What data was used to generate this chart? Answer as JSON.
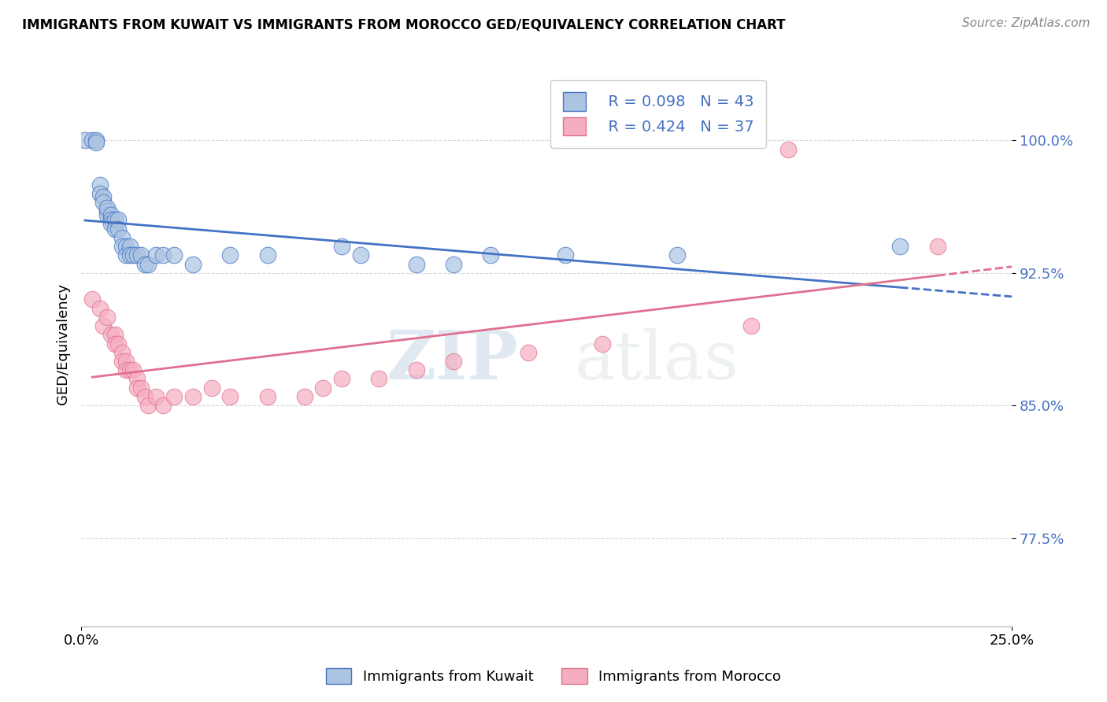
{
  "title": "IMMIGRANTS FROM KUWAIT VS IMMIGRANTS FROM MOROCCO GED/EQUIVALENCY CORRELATION CHART",
  "source": "Source: ZipAtlas.com",
  "ylabel": "GED/Equivalency",
  "ytick_labels": [
    "77.5%",
    "85.0%",
    "92.5%",
    "100.0%"
  ],
  "ytick_values": [
    0.775,
    0.85,
    0.925,
    1.0
  ],
  "xlim": [
    0.0,
    0.25
  ],
  "ylim": [
    0.725,
    1.045
  ],
  "legend_kuwait_r": "R = 0.098",
  "legend_kuwait_n": "N = 43",
  "legend_morocco_r": "R = 0.424",
  "legend_morocco_n": "N = 37",
  "color_kuwait": "#aac4e2",
  "color_morocco": "#f5aec0",
  "line_color_kuwait": "#4472c4",
  "line_color_morocco": "#e07090",
  "legend_label_kuwait": "Immigrants from Kuwait",
  "legend_label_morocco": "Immigrants from Morocco",
  "kuwait_x": [
    0.001,
    0.003,
    0.004,
    0.004,
    0.005,
    0.005,
    0.006,
    0.006,
    0.007,
    0.007,
    0.007,
    0.008,
    0.008,
    0.008,
    0.009,
    0.009,
    0.01,
    0.01,
    0.011,
    0.011,
    0.012,
    0.012,
    0.013,
    0.013,
    0.014,
    0.015,
    0.016,
    0.017,
    0.018,
    0.02,
    0.022,
    0.025,
    0.03,
    0.04,
    0.05,
    0.07,
    0.075,
    0.09,
    0.1,
    0.11,
    0.13,
    0.16,
    0.22
  ],
  "kuwait_y": [
    1.0,
    1.0,
    1.0,
    0.999,
    0.975,
    0.97,
    0.968,
    0.965,
    0.96,
    0.958,
    0.962,
    0.958,
    0.955,
    0.953,
    0.955,
    0.95,
    0.955,
    0.95,
    0.945,
    0.94,
    0.94,
    0.935,
    0.94,
    0.935,
    0.935,
    0.935,
    0.935,
    0.93,
    0.93,
    0.935,
    0.935,
    0.935,
    0.93,
    0.935,
    0.935,
    0.94,
    0.935,
    0.93,
    0.93,
    0.935,
    0.935,
    0.935,
    0.94
  ],
  "morocco_x": [
    0.003,
    0.005,
    0.006,
    0.007,
    0.008,
    0.009,
    0.009,
    0.01,
    0.011,
    0.011,
    0.012,
    0.012,
    0.013,
    0.014,
    0.015,
    0.015,
    0.016,
    0.017,
    0.018,
    0.02,
    0.022,
    0.025,
    0.03,
    0.035,
    0.04,
    0.05,
    0.06,
    0.065,
    0.07,
    0.08,
    0.09,
    0.1,
    0.12,
    0.14,
    0.18,
    0.19,
    0.23
  ],
  "morocco_y": [
    0.91,
    0.905,
    0.895,
    0.9,
    0.89,
    0.89,
    0.885,
    0.885,
    0.88,
    0.875,
    0.875,
    0.87,
    0.87,
    0.87,
    0.865,
    0.86,
    0.86,
    0.855,
    0.85,
    0.855,
    0.85,
    0.855,
    0.855,
    0.86,
    0.855,
    0.855,
    0.855,
    0.86,
    0.865,
    0.865,
    0.87,
    0.875,
    0.88,
    0.885,
    0.895,
    0.995,
    0.94
  ],
  "watermark_zip": "ZIP",
  "watermark_atlas": "atlas",
  "background_color": "#ffffff",
  "grid_color": "#d8d8d8"
}
